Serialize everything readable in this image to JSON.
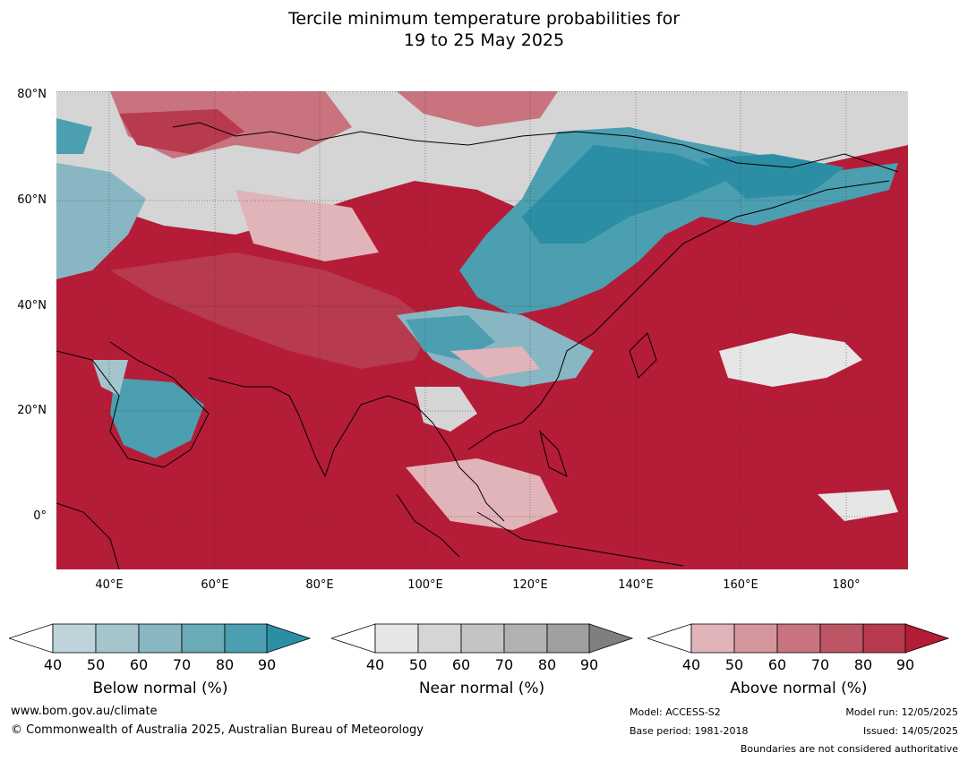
{
  "title_line1": "Tercile minimum temperature probabilities for",
  "title_line2": "19 to 25 May 2025",
  "lat_labels": [
    "80°N",
    "60°N",
    "40°N",
    "20°N",
    "0°"
  ],
  "lon_labels": [
    "40°E",
    "60°E",
    "80°E",
    "100°E",
    "120°E",
    "140°E",
    "160°E",
    "180°"
  ],
  "colorbars": [
    {
      "name": "below",
      "label": "Below normal (%)",
      "ticks": [
        "40",
        "50",
        "60",
        "70",
        "80",
        "90"
      ],
      "colors": [
        "#bfd3db",
        "#a5c5cd",
        "#88b6c2",
        "#6aabb8",
        "#4b9fb0",
        "#2c8ea5"
      ]
    },
    {
      "name": "near",
      "label": "Near normal (%)",
      "ticks": [
        "40",
        "50",
        "60",
        "70",
        "80",
        "90"
      ],
      "colors": [
        "#e6e6e6",
        "#d5d5d5",
        "#c4c4c4",
        "#b2b2b2",
        "#a0a0a0",
        "#7f7f7f"
      ]
    },
    {
      "name": "above",
      "label": "Above normal (%)",
      "ticks": [
        "40",
        "50",
        "60",
        "70",
        "80",
        "90"
      ],
      "colors": [
        "#e1b4ba",
        "#d4959d",
        "#c8737e",
        "#bd5565",
        "#b73a4e",
        "#b51c37"
      ]
    }
  ],
  "footer": {
    "website": "www.bom.gov.au/climate",
    "copyright": "© Commonwealth of Australia 2025, Australian Bureau of Meteorology",
    "model": "Model: ACCESS-S2",
    "base_period": "Base period: 1981-2018",
    "model_run": "Model run: 12/05/2025",
    "issued": "Issued: 14/05/2025",
    "disclaimer": "Boundaries are not considered authoritative"
  },
  "map_colors": {
    "above_strong": "#b51c37",
    "above_mid": "#c8737e",
    "above_light": "#e1b4ba",
    "near": "#d5d5d5",
    "near_dark": "#a0a0a0",
    "below_light": "#a5c5cd",
    "below_strong": "#2c8ea5",
    "white": "#ffffff"
  }
}
